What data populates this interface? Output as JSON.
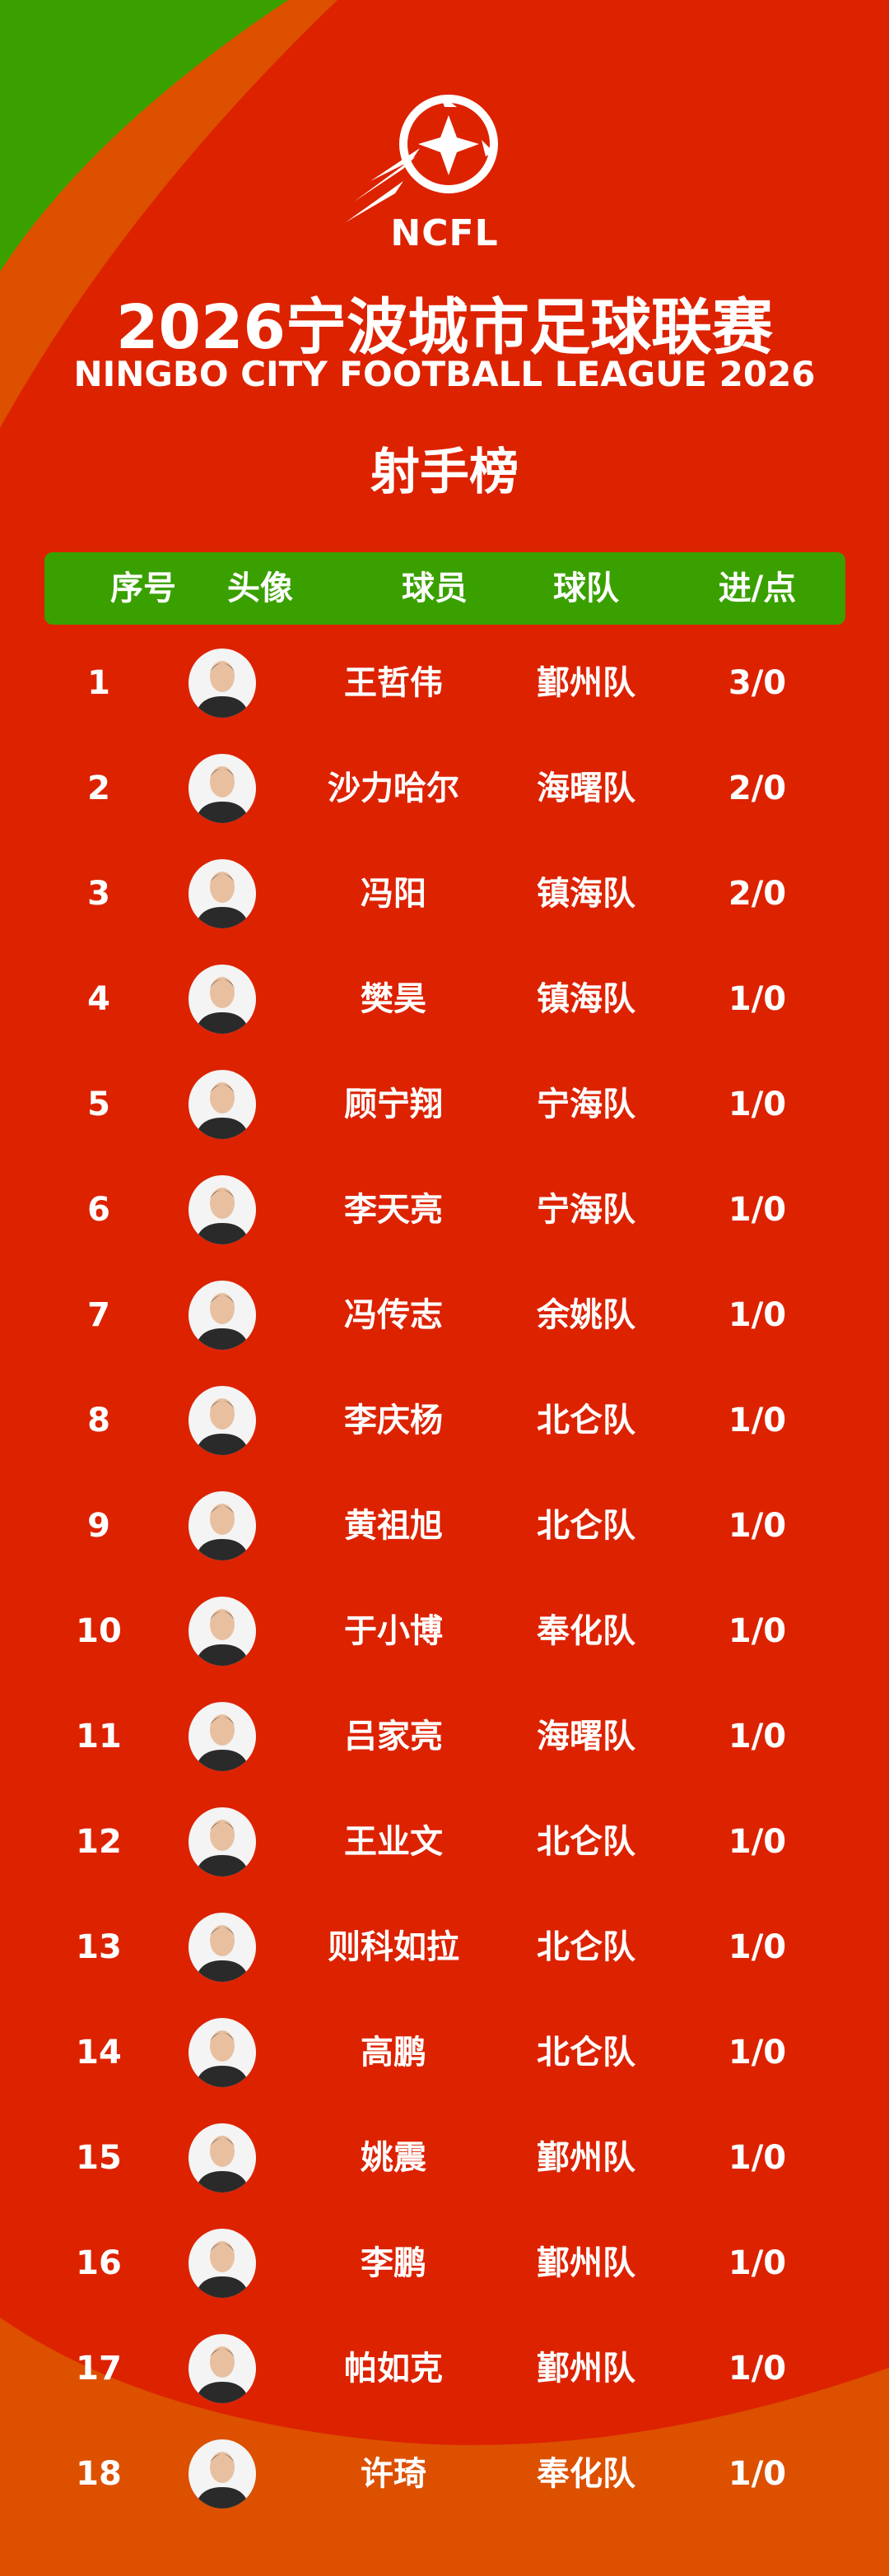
{
  "colors": {
    "red": "#dd2200",
    "orange": "#dc5000",
    "green": "#3aa000",
    "white": "#ffffff"
  },
  "logo": {
    "text": "NCFL",
    "icon": "football-logo-icon"
  },
  "title_cn": "2026宁波城市足球联赛",
  "title_en": "NINGBO CITY FOOTBALL LEAGUE 2026",
  "subtitle": "射手榜",
  "table": {
    "headers": [
      "序号",
      "头像",
      "球员",
      "球队",
      "进/点"
    ],
    "rows": [
      {
        "rank": "1",
        "name": "王哲伟",
        "team": "鄞州队",
        "score": "3/0"
      },
      {
        "rank": "2",
        "name": "沙力哈尔",
        "team": "海曙队",
        "score": "2/0"
      },
      {
        "rank": "3",
        "name": "冯阳",
        "team": "镇海队",
        "score": "2/0"
      },
      {
        "rank": "4",
        "name": "樊昊",
        "team": "镇海队",
        "score": "1/0"
      },
      {
        "rank": "5",
        "name": "顾宁翔",
        "team": "宁海队",
        "score": "1/0"
      },
      {
        "rank": "6",
        "name": "李天亮",
        "team": "宁海队",
        "score": "1/0"
      },
      {
        "rank": "7",
        "name": "冯传志",
        "team": "余姚队",
        "score": "1/0"
      },
      {
        "rank": "8",
        "name": "李庆杨",
        "team": "北仑队",
        "score": "1/0"
      },
      {
        "rank": "9",
        "name": "黄祖旭",
        "team": "北仑队",
        "score": "1/0"
      },
      {
        "rank": "10",
        "name": "于小博",
        "team": "奉化队",
        "score": "1/0"
      },
      {
        "rank": "11",
        "name": "吕家亮",
        "team": "海曙队",
        "score": "1/0"
      },
      {
        "rank": "12",
        "name": "王业文",
        "team": "北仑队",
        "score": "1/0"
      },
      {
        "rank": "13",
        "name": "则科如拉",
        "team": "北仑队",
        "score": "1/0"
      },
      {
        "rank": "14",
        "name": "高鹏",
        "team": "北仑队",
        "score": "1/0"
      },
      {
        "rank": "15",
        "name": "姚震",
        "team": "鄞州队",
        "score": "1/0"
      },
      {
        "rank": "16",
        "name": "李鹏",
        "team": "鄞州队",
        "score": "1/0"
      },
      {
        "rank": "17",
        "name": "帕如克",
        "team": "鄞州队",
        "score": "1/0"
      },
      {
        "rank": "18",
        "name": "许琦",
        "team": "奉化队",
        "score": "1/0"
      }
    ]
  }
}
